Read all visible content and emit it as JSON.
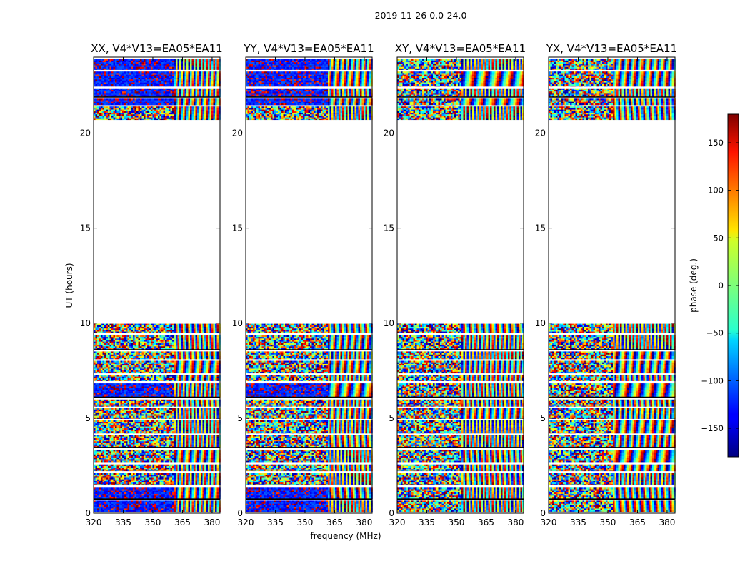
{
  "chart_data": {
    "type": "heatmap",
    "suptitle": "2019-11-26 0.0-24.0",
    "xlabel": "frequency (MHz)",
    "ylabel": "UT (hours)",
    "xlim": [
      320,
      384
    ],
    "ylim": [
      0,
      24
    ],
    "xticks": [
      "320",
      "335",
      "350",
      "365",
      "380"
    ],
    "yticks": [
      "0",
      "5",
      "10",
      "15",
      "20"
    ],
    "colorbar": {
      "label": "phase (deg.)",
      "range": [
        -180,
        180
      ],
      "ticks": [
        "150",
        "100",
        "50",
        "0",
        "−50",
        "−100",
        "−150"
      ],
      "tick_values": [
        150,
        100,
        50,
        0,
        -50,
        -100,
        -150
      ],
      "colormap": "jet"
    },
    "data_gap_hours": [
      9.5,
      20.7
    ],
    "panels": [
      {
        "title": "XX, V4*V13=EA05*EA11",
        "noisy_edge_mhz": 360
      },
      {
        "title": "YY, V4*V13=EA05*EA11",
        "noisy_edge_mhz": 361
      },
      {
        "title": "XY, V4*V13=EA05*EA11",
        "noisy_edge_mhz": 352
      },
      {
        "title": "YX, V4*V13=EA05*EA11",
        "noisy_edge_mhz": 352
      }
    ]
  }
}
